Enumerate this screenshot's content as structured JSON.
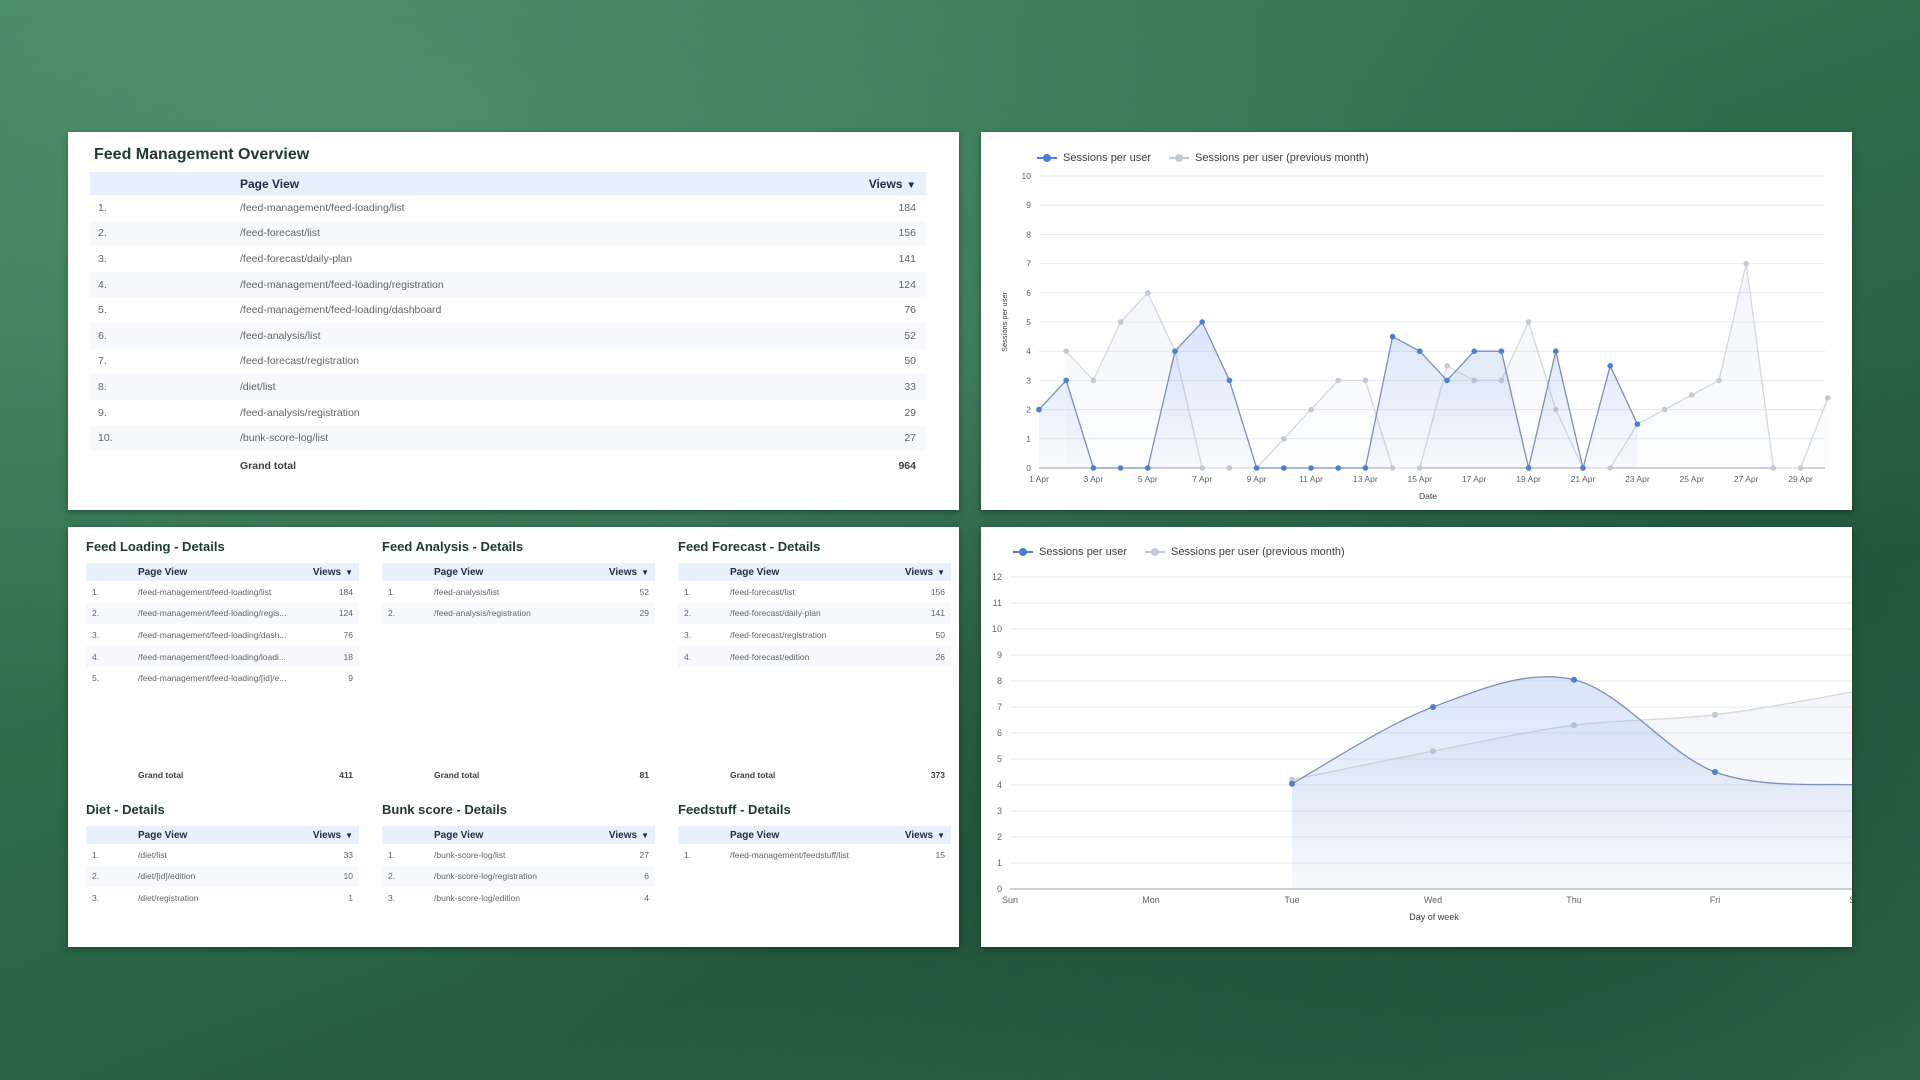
{
  "overview": {
    "title": "Feed Management Overview",
    "col_page": "Page View",
    "col_views": "Views",
    "rows": [
      {
        "n": "1.",
        "page": "/feed-management/feed-loading/list",
        "views": "184"
      },
      {
        "n": "2.",
        "page": "/feed-forecast/list",
        "views": "156"
      },
      {
        "n": "3.",
        "page": "/feed-forecast/daily-plan",
        "views": "141"
      },
      {
        "n": "4.",
        "page": "/feed-management/feed-loading/registration",
        "views": "124"
      },
      {
        "n": "5.",
        "page": "/feed-management/feed-loading/dashboard",
        "views": "76"
      },
      {
        "n": "6.",
        "page": "/feed-analysis/list",
        "views": "52"
      },
      {
        "n": "7.",
        "page": "/feed-forecast/registration",
        "views": "50"
      },
      {
        "n": "8.",
        "page": "/diet/list",
        "views": "33"
      },
      {
        "n": "9.",
        "page": "/feed-analysis/registration",
        "views": "29"
      },
      {
        "n": "10.",
        "page": "/bunk-score-log/list",
        "views": "27"
      }
    ],
    "total_label": "Grand total",
    "total": "964"
  },
  "detail_tables": [
    {
      "title": "Feed Loading - Details",
      "col_page": "Page View",
      "col_views": "Views",
      "rows": [
        {
          "n": "1.",
          "page": "/feed-management/feed-loading/list",
          "views": "184"
        },
        {
          "n": "2.",
          "page": "/feed-management/feed-loading/regis...",
          "views": "124"
        },
        {
          "n": "3.",
          "page": "/feed-management/feed-loading/dash...",
          "views": "76"
        },
        {
          "n": "4.",
          "page": "/feed-management/feed-loading/loadi...",
          "views": "18"
        },
        {
          "n": "5.",
          "page": "/feed-management/feed-loading/[id]/e...",
          "views": "9"
        }
      ],
      "total_label": "Grand total",
      "total": "411"
    },
    {
      "title": "Feed Analysis - Details",
      "col_page": "Page View",
      "col_views": "Views",
      "rows": [
        {
          "n": "1.",
          "page": "/feed-analysis/list",
          "views": "52"
        },
        {
          "n": "2.",
          "page": "/feed-analysis/registration",
          "views": "29"
        }
      ],
      "total_label": "Grand total",
      "total": "81"
    },
    {
      "title": "Feed Forecast - Details",
      "col_page": "Page View",
      "col_views": "Views",
      "rows": [
        {
          "n": "1.",
          "page": "/feed-forecast/list",
          "views": "156"
        },
        {
          "n": "2.",
          "page": "/feed-forecast/daily-plan",
          "views": "141"
        },
        {
          "n": "3.",
          "page": "/feed-forecast/registration",
          "views": "50"
        },
        {
          "n": "4.",
          "page": "/feed-forecast/edition",
          "views": "26"
        }
      ],
      "total_label": "Grand total",
      "total": "373"
    },
    {
      "title": "Diet - Details",
      "col_page": "Page View",
      "col_views": "Views",
      "rows": [
        {
          "n": "1.",
          "page": "/diet/list",
          "views": "33"
        },
        {
          "n": "2.",
          "page": "/diet/[id]/edition",
          "views": "10"
        },
        {
          "n": "3.",
          "page": "/diet/registration",
          "views": "1"
        }
      ]
    },
    {
      "title": "Bunk score - Details",
      "col_page": "Page View",
      "col_views": "Views",
      "rows": [
        {
          "n": "1.",
          "page": "/bunk-score-log/list",
          "views": "27"
        },
        {
          "n": "2.",
          "page": "/bunk-score-log/registration",
          "views": "6"
        },
        {
          "n": "3.",
          "page": "/bunk-score-log/edition",
          "views": "4"
        }
      ]
    },
    {
      "title": "Feedstuff - Details",
      "col_page": "Page View",
      "col_views": "Views",
      "rows": [
        {
          "n": "1.",
          "page": "/feed-management/feedstuff/list",
          "views": "15"
        }
      ]
    }
  ],
  "chart_data": [
    {
      "type": "line",
      "xlabel": "Date",
      "ylabel": "Sessions per user",
      "ylim": [
        0,
        10
      ],
      "yticks": [
        "0",
        "1",
        "2",
        "3",
        "4",
        "5",
        "6",
        "7",
        "8",
        "9",
        "10"
      ],
      "x_tick_labels": [
        "1 Apr",
        "3 Apr",
        "5 Apr",
        "7 Apr",
        "9 Apr",
        "11 Apr",
        "13 Apr",
        "15 Apr",
        "17 Apr",
        "19 Apr",
        "21 Apr",
        "23 Apr",
        "25 Apr",
        "27 Apr",
        "29 Apr"
      ],
      "x": [
        "1 Apr",
        "2 Apr",
        "3 Apr",
        "4 Apr",
        "5 Apr",
        "6 Apr",
        "7 Apr",
        "8 Apr",
        "9 Apr",
        "10 Apr",
        "11 Apr",
        "12 Apr",
        "13 Apr",
        "14 Apr",
        "15 Apr",
        "16 Apr",
        "17 Apr",
        "18 Apr",
        "19 Apr",
        "20 Apr",
        "21 Apr",
        "22 Apr",
        "23 Apr",
        "24 Apr",
        "25 Apr",
        "26 Apr",
        "27 Apr",
        "28 Apr",
        "29 Apr",
        "30 Apr"
      ],
      "grid": true,
      "legend": "top-left",
      "series": [
        {
          "name": "Sessions per user",
          "color": "#4a7fd9",
          "values": [
            2,
            3,
            0,
            0,
            0,
            4,
            5,
            3,
            0,
            0,
            0,
            0,
            0,
            4.5,
            4,
            3,
            4,
            4,
            0,
            4,
            0,
            3.5,
            1.5,
            null,
            null,
            null,
            null,
            null,
            null,
            null
          ]
        },
        {
          "name": "Sessions per user (previous month)",
          "color": "#c3cad6",
          "values": [
            null,
            4,
            3,
            5,
            6,
            4,
            0,
            0,
            0,
            1,
            2,
            3,
            3,
            0,
            0,
            3.5,
            3,
            3,
            5,
            2,
            0,
            0,
            1.5,
            2,
            2.5,
            3,
            7,
            0,
            0,
            2.4
          ]
        }
      ]
    },
    {
      "type": "line",
      "xlabel": "Day of week",
      "ylabel": "",
      "ylim": [
        0,
        12
      ],
      "yticks": [
        "0",
        "1",
        "2",
        "3",
        "4",
        "5",
        "6",
        "7",
        "8",
        "9",
        "10",
        "11",
        "12"
      ],
      "categories": [
        "Sun",
        "Mon",
        "Tue",
        "Wed",
        "Thu",
        "Fri",
        "Sat"
      ],
      "grid": true,
      "legend": "top-left",
      "series": [
        {
          "name": "Sessions per user",
          "color": "#4a7fd9",
          "values": [
            null,
            null,
            4.05,
            7.0,
            8.05,
            4.5,
            4.0
          ]
        },
        {
          "name": "Sessions per user (previous month)",
          "color": "#c3cad6",
          "values": [
            null,
            null,
            4.2,
            5.3,
            6.3,
            6.7,
            7.6
          ]
        }
      ]
    }
  ]
}
